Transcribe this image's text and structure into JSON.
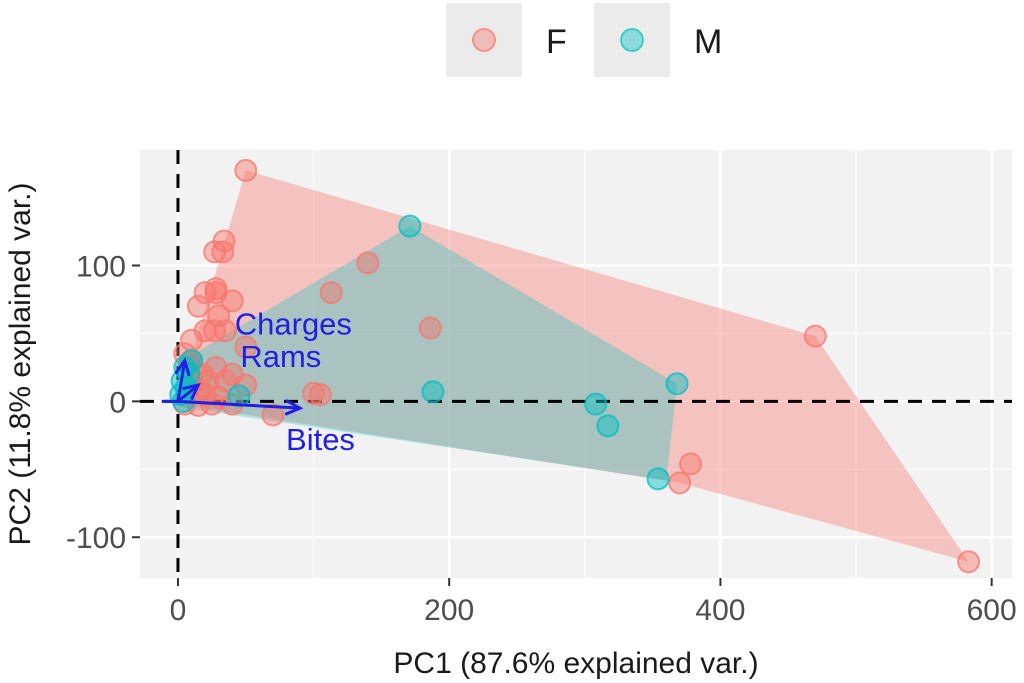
{
  "chart_data": {
    "type": "scatter",
    "title": "",
    "xlabel": "PC1 (87.6% explained var.)",
    "ylabel": "PC2 (11.8% explained var.)",
    "xlim": [
      -28,
      615
    ],
    "ylim": [
      -130,
      185
    ],
    "x_ticks": [
      0,
      200,
      400,
      600
    ],
    "x_tick_labels": [
      "0",
      "200",
      "400",
      "600"
    ],
    "y_ticks": [
      -100,
      0,
      100
    ],
    "y_tick_labels": [
      "-100",
      "0",
      "100"
    ],
    "grid": true,
    "legend": {
      "position": "top",
      "entries": [
        "F",
        "M"
      ]
    },
    "colors": {
      "F": "#F8766D",
      "M": "#00BFC4",
      "arrow": "#1f1fe6",
      "panel": "#f2f2f2",
      "grid": "#ffffff"
    },
    "series": [
      {
        "name": "F",
        "hull": [
          [
            0,
            0
          ],
          [
            50,
            170
          ],
          [
            470,
            48
          ],
          [
            583,
            -118
          ],
          [
            370,
            -60
          ],
          [
            0,
            -2
          ]
        ],
        "points": [
          [
            50,
            170
          ],
          [
            470,
            48
          ],
          [
            583,
            -118
          ],
          [
            370,
            -60
          ],
          [
            378,
            -46
          ],
          [
            186,
            54
          ],
          [
            34,
            118
          ],
          [
            27,
            110
          ],
          [
            33,
            110
          ],
          [
            20,
            80
          ],
          [
            28,
            83
          ],
          [
            28,
            80
          ],
          [
            15,
            70
          ],
          [
            40,
            74
          ],
          [
            35,
            52
          ],
          [
            30,
            63
          ],
          [
            20,
            52
          ],
          [
            27,
            52
          ],
          [
            50,
            40
          ],
          [
            10,
            45
          ],
          [
            5,
            35
          ],
          [
            10,
            30
          ],
          [
            28,
            25
          ],
          [
            18,
            20
          ],
          [
            40,
            20
          ],
          [
            35,
            15
          ],
          [
            10,
            12
          ],
          [
            15,
            8
          ],
          [
            20,
            5
          ],
          [
            30,
            3
          ],
          [
            40,
            -2
          ],
          [
            25,
            -2
          ],
          [
            15,
            -3
          ],
          [
            5,
            -2
          ],
          [
            70,
            -10
          ],
          [
            100,
            6
          ],
          [
            105,
            5
          ],
          [
            113,
            80
          ],
          [
            140,
            102
          ],
          [
            8,
            28
          ],
          [
            12,
            22
          ],
          [
            22,
            15
          ],
          [
            50,
            12
          ]
        ]
      },
      {
        "name": "M",
        "hull": [
          [
            0,
            0
          ],
          [
            3,
            30
          ],
          [
            171,
            129
          ],
          [
            368,
            13
          ],
          [
            360,
            -58
          ],
          [
            0,
            -4
          ]
        ],
        "points": [
          [
            171,
            129
          ],
          [
            368,
            13
          ],
          [
            308,
            -2
          ],
          [
            317,
            -18
          ],
          [
            354,
            -57
          ],
          [
            188,
            7
          ],
          [
            45,
            4
          ],
          [
            5,
            25
          ],
          [
            8,
            20
          ],
          [
            3,
            15
          ],
          [
            6,
            10
          ],
          [
            2,
            5
          ],
          [
            10,
            30
          ],
          [
            4,
            0
          ]
        ]
      }
    ],
    "loadings": [
      {
        "label": "Charges",
        "x": 5,
        "y": 30
      },
      {
        "label": "Rams",
        "x": 15,
        "y": 12
      },
      {
        "label": "Bites",
        "x": 90,
        "y": -5
      }
    ]
  }
}
